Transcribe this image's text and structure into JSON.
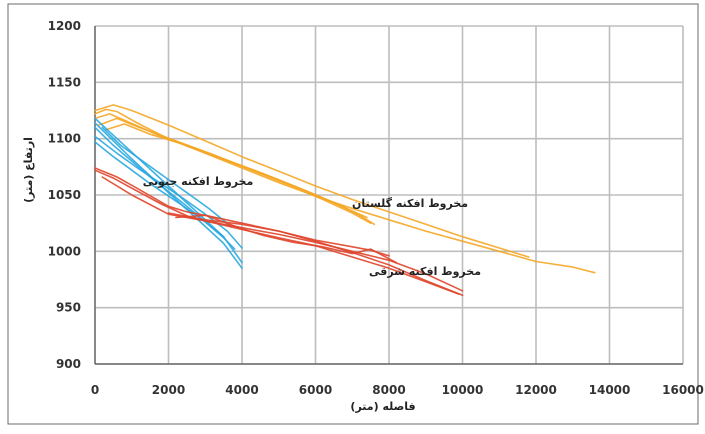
{
  "chart_data": {
    "type": "line",
    "title": "",
    "xlabel": "فاصله (متر)",
    "ylabel": "ارتفاع (متر)",
    "xlim": [
      0,
      16000
    ],
    "ylim": [
      900,
      1200
    ],
    "xticks": [
      0,
      2000,
      4000,
      6000,
      8000,
      10000,
      12000,
      14000,
      16000
    ],
    "yticks": [
      900,
      950,
      1000,
      1050,
      1100,
      1150,
      1200
    ],
    "grid": true,
    "legend": "none",
    "colors": {
      "golestan": "#f5a623",
      "south": "#29a8e0",
      "north": "#e0452b"
    },
    "annotations": {
      "golestan": "مخروط افکنه گلستان",
      "south": "مخروط افکنه جنوبی",
      "north": "مخروط افکنه شرقی"
    },
    "series": [
      {
        "group": "golestan",
        "x": [
          0,
          300,
          600,
          1200,
          2000,
          3000,
          4000,
          5000,
          6000,
          7000,
          8000,
          9000,
          10000,
          11000,
          12000,
          13000,
          13600
        ],
        "y": [
          1122,
          1126,
          1124,
          1113,
          1100,
          1087,
          1074,
          1061,
          1049,
          1038,
          1028,
          1018,
          1009,
          1000,
          991,
          986,
          981
        ]
      },
      {
        "group": "golestan",
        "x": [
          0,
          500,
          1000,
          2000,
          3000,
          4000,
          5000,
          6000,
          7000,
          8000,
          9000,
          10000,
          11000,
          11800
        ],
        "y": [
          1125,
          1130,
          1125,
          1112,
          1098,
          1084,
          1071,
          1058,
          1046,
          1035,
          1024,
          1013,
          1003,
          995
        ]
      },
      {
        "group": "golestan",
        "x": [
          0,
          400,
          900,
          1800,
          2800,
          3800,
          4800,
          5800,
          6600,
          7200,
          7600
        ],
        "y": [
          1118,
          1122,
          1115,
          1102,
          1090,
          1078,
          1066,
          1053,
          1042,
          1032,
          1024
        ]
      },
      {
        "group": "golestan",
        "x": [
          100,
          600,
          1200,
          2200,
          3200,
          4200,
          5200,
          6200,
          7000,
          7500
        ],
        "y": [
          1112,
          1118,
          1110,
          1098,
          1086,
          1073,
          1060,
          1046,
          1034,
          1025
        ]
      },
      {
        "group": "golestan",
        "x": [
          300,
          800,
          1500,
          2500,
          3500,
          4500,
          5500,
          6500,
          7400
        ],
        "y": [
          1108,
          1113,
          1104,
          1094,
          1082,
          1070,
          1057,
          1043,
          1030
        ]
      },
      {
        "group": "south",
        "x": [
          0,
          500,
          1000,
          1500,
          2000,
          2500,
          3000,
          3500,
          4000
        ],
        "y": [
          1118,
          1103,
          1088,
          1073,
          1058,
          1043,
          1028,
          1013,
          990
        ]
      },
      {
        "group": "south",
        "x": [
          0,
          500,
          1000,
          1500,
          2000,
          2500,
          3000,
          3500,
          4000
        ],
        "y": [
          1114,
          1098,
          1082,
          1067,
          1052,
          1037,
          1022,
          1007,
          985
        ]
      },
      {
        "group": "south",
        "x": [
          0,
          500,
          1000,
          1500,
          2000,
          2500,
          3000,
          3500,
          3800
        ],
        "y": [
          1110,
          1094,
          1080,
          1066,
          1053,
          1040,
          1026,
          1012,
          1002
        ]
      },
      {
        "group": "south",
        "x": [
          0,
          600,
          1200,
          1800,
          2400,
          3000,
          3600,
          4000
        ],
        "y": [
          1102,
          1087,
          1073,
          1060,
          1047,
          1033,
          1018,
          1003
        ]
      },
      {
        "group": "south",
        "x": [
          0,
          500,
          1000,
          1500,
          2000,
          2500,
          3000,
          3500
        ],
        "y": [
          1097,
          1084,
          1072,
          1060,
          1049,
          1038,
          1026,
          1013
        ]
      },
      {
        "group": "south",
        "x": [
          200,
          700,
          1300,
          1900,
          2500,
          3100,
          3700
        ],
        "y": [
          1110,
          1094,
          1080,
          1066,
          1052,
          1038,
          1022
        ]
      },
      {
        "group": "north",
        "x": [
          0,
          600,
          1200,
          2000,
          2500,
          3000,
          4000,
          5000,
          6000,
          7000,
          8000,
          9000,
          10000
        ],
        "y": [
          1074,
          1066,
          1055,
          1040,
          1035,
          1032,
          1025,
          1018,
          1009,
          999,
          988,
          974,
          961
        ]
      },
      {
        "group": "north",
        "x": [
          0,
          500,
          1000,
          1800,
          2600,
          3400,
          4200,
          5000,
          6000,
          7000,
          8000,
          9000,
          9900
        ],
        "y": [
          1072,
          1065,
          1056,
          1042,
          1030,
          1024,
          1018,
          1012,
          1005,
          995,
          985,
          973,
          962
        ]
      },
      {
        "group": "north",
        "x": [
          200,
          1000,
          2000,
          3000,
          4000,
          5000,
          6000,
          7000,
          8000,
          9000,
          10000
        ],
        "y": [
          1066,
          1050,
          1033,
          1027,
          1021,
          1015,
          1008,
          1000,
          992,
          980,
          965
        ]
      },
      {
        "group": "north",
        "x": [
          2000,
          3000,
          4000,
          5000,
          6000,
          7000,
          7500,
          8000
        ],
        "y": [
          1034,
          1028,
          1024,
          1018,
          1010,
          1004,
          1001,
          996
        ]
      },
      {
        "group": "north",
        "x": [
          2200,
          3000,
          4000,
          4600,
          5400,
          6200,
          7000,
          7500,
          8200
        ],
        "y": [
          1030,
          1032,
          1020,
          1014,
          1008,
          1004,
          998,
          1002,
          990
        ]
      }
    ]
  }
}
